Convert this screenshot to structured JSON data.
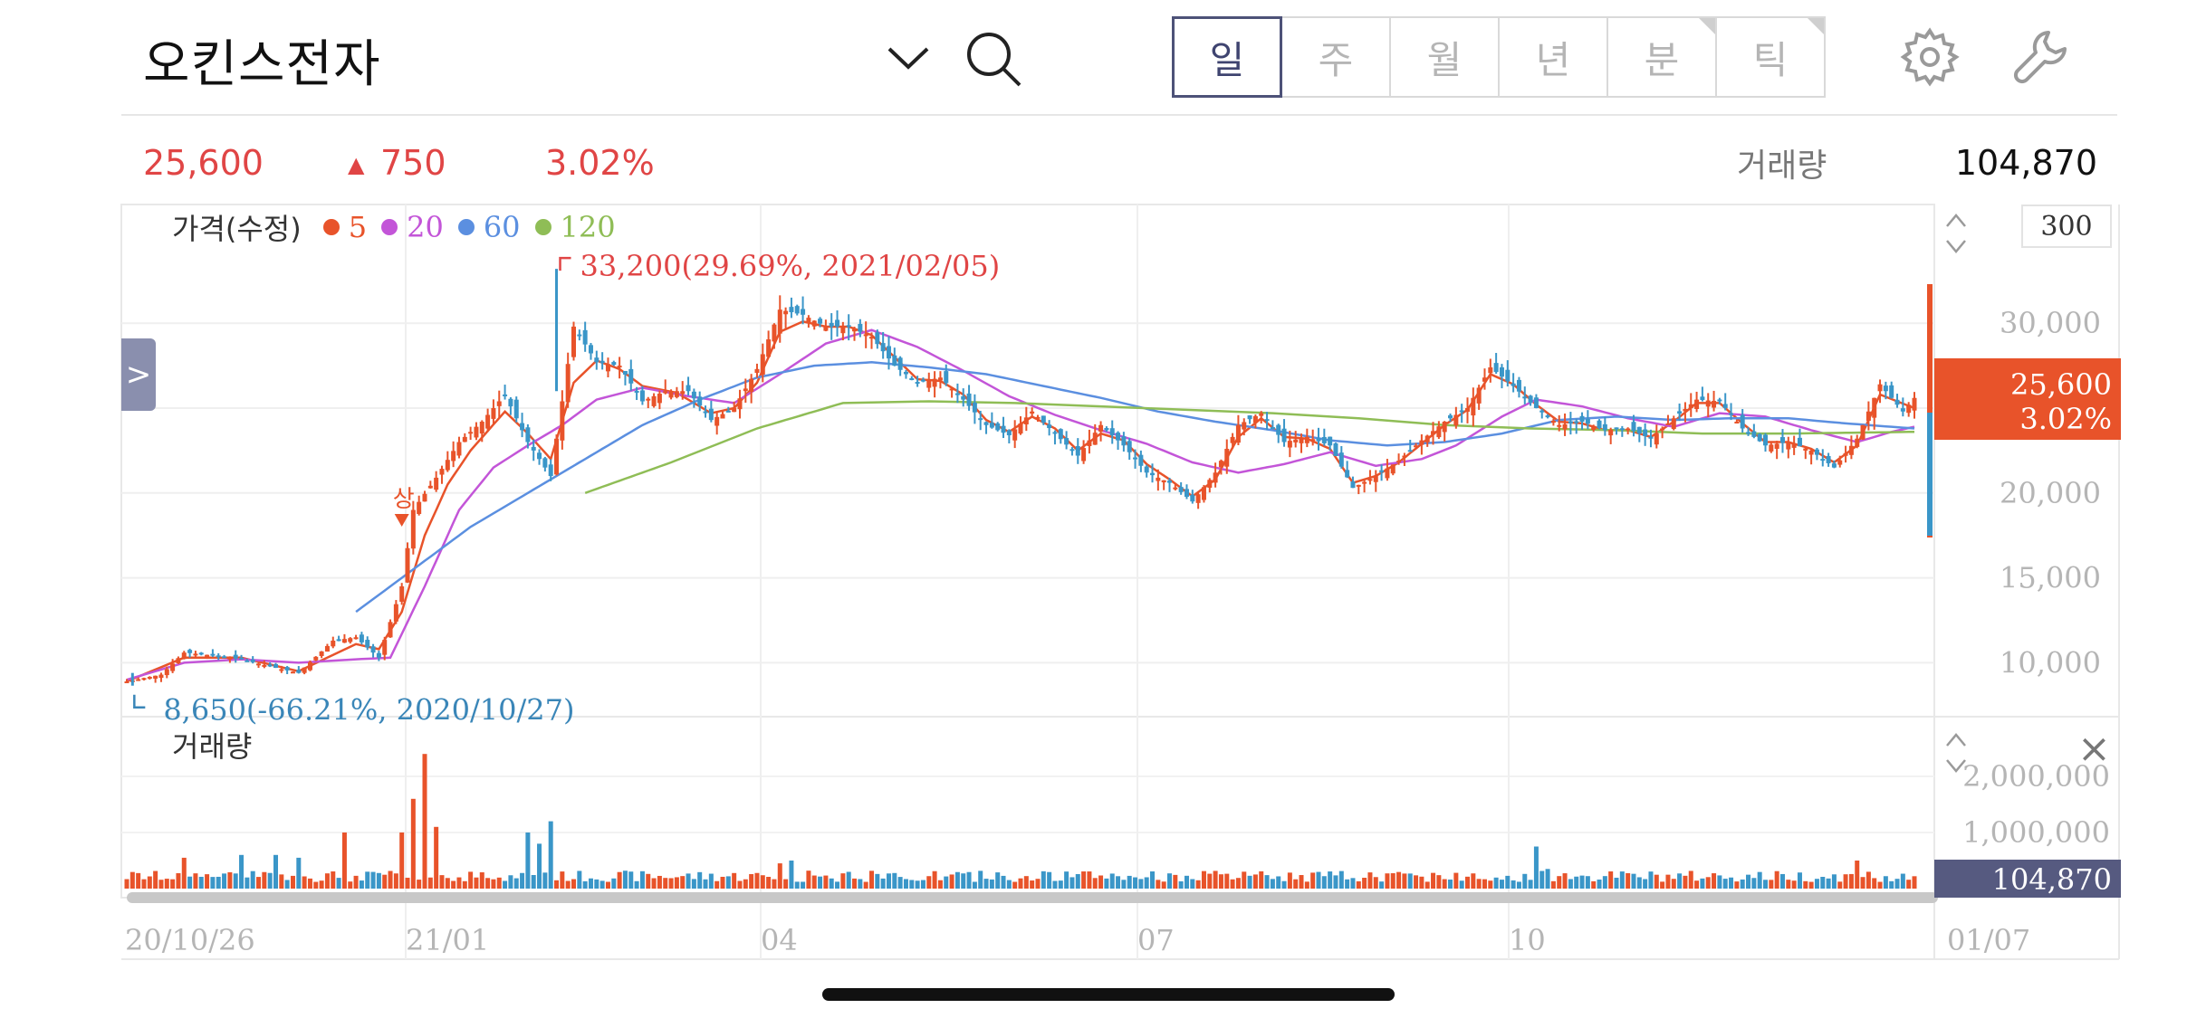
{
  "header": {
    "stock_name": "오킨스전자",
    "periods": [
      {
        "label": "일",
        "active": true
      },
      {
        "label": "주",
        "active": false
      },
      {
        "label": "월",
        "active": false
      },
      {
        "label": "년",
        "active": false
      },
      {
        "label": "분",
        "active": false
      },
      {
        "label": "틱",
        "active": false
      }
    ],
    "icons": [
      "chevron-down-icon",
      "search-icon",
      "gear-icon",
      "wrench-icon"
    ]
  },
  "quote": {
    "price": "25,600",
    "change_arrow": "▲",
    "change": "750",
    "change_pct": "3.02%",
    "volume_label": "거래량",
    "volume": "104,870"
  },
  "legend": {
    "title": "가격(수정)",
    "items": [
      {
        "label": "5",
        "color": "#e8532a"
      },
      {
        "label": "20",
        "color": "#c355d8"
      },
      {
        "label": "60",
        "color": "#5b8fe0"
      },
      {
        "label": "120",
        "color": "#8fbd56"
      }
    ]
  },
  "controls": {
    "side_tab": ">",
    "count": "300",
    "close": "×"
  },
  "badges": {
    "price": "25,600",
    "pct": "3.02%",
    "volume": "104,870"
  },
  "chart_data": {
    "type": "candlestick",
    "price_axis": {
      "ticks": [
        "30,000",
        "25,000",
        "20,000",
        "15,000",
        "10,000"
      ],
      "values": [
        30000,
        25000,
        20000,
        15000,
        10000
      ]
    },
    "volume_axis": {
      "ticks": [
        "2,000,000",
        "1,000,000"
      ],
      "values": [
        2000000,
        1000000
      ]
    },
    "x_ticks": [
      "20/10/26",
      "21/01",
      "04",
      "07",
      "10",
      "01/07"
    ],
    "annotations": {
      "high": {
        "text": "33,200(29.69%, 2021/02/05)",
        "value": 33200
      },
      "low": {
        "text": "8,650(-66.21%, 2020/10/27)",
        "value": 8650
      },
      "marker": "상"
    },
    "close_anchors": [
      [
        0,
        8900
      ],
      [
        6,
        9300
      ],
      [
        10,
        10600
      ],
      [
        16,
        10400
      ],
      [
        20,
        10200
      ],
      [
        26,
        9700
      ],
      [
        30,
        9400
      ],
      [
        36,
        11300
      ],
      [
        40,
        11500
      ],
      [
        44,
        10300
      ],
      [
        48,
        14500
      ],
      [
        50,
        19000
      ],
      [
        54,
        20900
      ],
      [
        58,
        23000
      ],
      [
        62,
        24200
      ],
      [
        66,
        25800
      ],
      [
        70,
        23000
      ],
      [
        74,
        21000
      ],
      [
        78,
        29800
      ],
      [
        82,
        27700
      ],
      [
        86,
        27500
      ],
      [
        90,
        25400
      ],
      [
        94,
        26000
      ],
      [
        98,
        26000
      ],
      [
        102,
        24300
      ],
      [
        106,
        25000
      ],
      [
        110,
        27300
      ],
      [
        114,
        30800
      ],
      [
        118,
        30500
      ],
      [
        122,
        29800
      ],
      [
        126,
        29800
      ],
      [
        130,
        29200
      ],
      [
        134,
        27500
      ],
      [
        138,
        26500
      ],
      [
        142,
        26800
      ],
      [
        146,
        25500
      ],
      [
        150,
        24000
      ],
      [
        154,
        23400
      ],
      [
        158,
        24800
      ],
      [
        162,
        23500
      ],
      [
        166,
        22200
      ],
      [
        170,
        24000
      ],
      [
        174,
        22800
      ],
      [
        178,
        21200
      ],
      [
        182,
        20600
      ],
      [
        186,
        19500
      ],
      [
        190,
        21200
      ],
      [
        194,
        24000
      ],
      [
        198,
        24700
      ],
      [
        202,
        23000
      ],
      [
        206,
        23300
      ],
      [
        210,
        22800
      ],
      [
        214,
        20300
      ],
      [
        218,
        21000
      ],
      [
        222,
        21900
      ],
      [
        226,
        23100
      ],
      [
        230,
        24200
      ],
      [
        234,
        25000
      ],
      [
        238,
        27400
      ],
      [
        242,
        26300
      ],
      [
        246,
        25000
      ],
      [
        250,
        24000
      ],
      [
        254,
        24200
      ],
      [
        258,
        23700
      ],
      [
        262,
        23800
      ],
      [
        266,
        23200
      ],
      [
        270,
        24400
      ],
      [
        274,
        25500
      ],
      [
        278,
        25400
      ],
      [
        282,
        23800
      ],
      [
        286,
        22800
      ],
      [
        290,
        23000
      ],
      [
        294,
        22500
      ],
      [
        298,
        21500
      ],
      [
        302,
        23200
      ],
      [
        306,
        26400
      ],
      [
        310,
        24800
      ],
      [
        312,
        25600
      ]
    ],
    "ma_anchors": {
      "5": [
        [
          0,
          8900
        ],
        [
          10,
          10300
        ],
        [
          20,
          10300
        ],
        [
          30,
          9500
        ],
        [
          40,
          11100
        ],
        [
          44,
          10800
        ],
        [
          48,
          13000
        ],
        [
          52,
          17500
        ],
        [
          56,
          20500
        ],
        [
          60,
          22500
        ],
        [
          66,
          24800
        ],
        [
          70,
          23500
        ],
        [
          74,
          22000
        ],
        [
          78,
          26500
        ],
        [
          82,
          27800
        ],
        [
          86,
          27300
        ],
        [
          90,
          26300
        ],
        [
          96,
          25900
        ],
        [
          102,
          24700
        ],
        [
          106,
          25000
        ],
        [
          110,
          26500
        ],
        [
          114,
          29500
        ],
        [
          118,
          30100
        ],
        [
          122,
          29800
        ],
        [
          126,
          29800
        ],
        [
          130,
          29300
        ],
        [
          134,
          28000
        ],
        [
          138,
          26700
        ],
        [
          142,
          26600
        ],
        [
          146,
          25800
        ],
        [
          150,
          24300
        ],
        [
          154,
          23600
        ],
        [
          158,
          24500
        ],
        [
          162,
          23800
        ],
        [
          166,
          22500
        ],
        [
          170,
          23500
        ],
        [
          174,
          23100
        ],
        [
          178,
          21700
        ],
        [
          182,
          20800
        ],
        [
          186,
          19800
        ],
        [
          190,
          20800
        ],
        [
          194,
          23300
        ],
        [
          198,
          24400
        ],
        [
          202,
          23300
        ],
        [
          206,
          23200
        ],
        [
          210,
          22600
        ],
        [
          214,
          20600
        ],
        [
          218,
          21000
        ],
        [
          222,
          21800
        ],
        [
          226,
          22900
        ],
        [
          230,
          24000
        ],
        [
          234,
          24900
        ],
        [
          238,
          27000
        ],
        [
          242,
          26400
        ],
        [
          246,
          25200
        ],
        [
          250,
          24200
        ],
        [
          254,
          24100
        ],
        [
          258,
          23700
        ],
        [
          262,
          23700
        ],
        [
          266,
          23300
        ],
        [
          270,
          24200
        ],
        [
          274,
          25300
        ],
        [
          278,
          25300
        ],
        [
          282,
          24100
        ],
        [
          286,
          23000
        ],
        [
          290,
          23000
        ],
        [
          294,
          22600
        ],
        [
          298,
          21800
        ],
        [
          302,
          22800
        ],
        [
          306,
          25800
        ],
        [
          312,
          25000
        ]
      ],
      "20": [
        [
          0,
          9000
        ],
        [
          10,
          10000
        ],
        [
          20,
          10200
        ],
        [
          30,
          10000
        ],
        [
          40,
          10200
        ],
        [
          46,
          10300
        ],
        [
          52,
          14500
        ],
        [
          58,
          19000
        ],
        [
          64,
          21500
        ],
        [
          70,
          22800
        ],
        [
          76,
          24000
        ],
        [
          82,
          25500
        ],
        [
          90,
          26200
        ],
        [
          98,
          25700
        ],
        [
          106,
          25300
        ],
        [
          114,
          27000
        ],
        [
          122,
          28800
        ],
        [
          130,
          29600
        ],
        [
          138,
          28600
        ],
        [
          146,
          27200
        ],
        [
          154,
          25700
        ],
        [
          162,
          24600
        ],
        [
          170,
          23700
        ],
        [
          178,
          22900
        ],
        [
          186,
          21800
        ],
        [
          194,
          21200
        ],
        [
          202,
          21700
        ],
        [
          210,
          22400
        ],
        [
          218,
          21600
        ],
        [
          226,
          22000
        ],
        [
          232,
          22800
        ],
        [
          240,
          24500
        ],
        [
          246,
          25500
        ],
        [
          254,
          25100
        ],
        [
          262,
          24400
        ],
        [
          270,
          23900
        ],
        [
          278,
          24700
        ],
        [
          286,
          24500
        ],
        [
          294,
          23700
        ],
        [
          302,
          23000
        ],
        [
          308,
          23600
        ],
        [
          312,
          23900
        ]
      ],
      "60": [
        [
          40,
          13000
        ],
        [
          50,
          15500
        ],
        [
          60,
          18000
        ],
        [
          70,
          20000
        ],
        [
          80,
          22000
        ],
        [
          90,
          24000
        ],
        [
          100,
          25500
        ],
        [
          110,
          26800
        ],
        [
          120,
          27500
        ],
        [
          130,
          27700
        ],
        [
          140,
          27400
        ],
        [
          150,
          27000
        ],
        [
          160,
          26300
        ],
        [
          170,
          25600
        ],
        [
          180,
          24800
        ],
        [
          190,
          24200
        ],
        [
          200,
          23700
        ],
        [
          210,
          23100
        ],
        [
          220,
          22800
        ],
        [
          230,
          23000
        ],
        [
          240,
          23500
        ],
        [
          250,
          24300
        ],
        [
          260,
          24500
        ],
        [
          270,
          24300
        ],
        [
          280,
          24400
        ],
        [
          290,
          24400
        ],
        [
          300,
          24100
        ],
        [
          312,
          23800
        ]
      ],
      "120": [
        [
          80,
          20000
        ],
        [
          95,
          21800
        ],
        [
          110,
          23800
        ],
        [
          125,
          25300
        ],
        [
          140,
          25400
        ],
        [
          155,
          25300
        ],
        [
          170,
          25100
        ],
        [
          185,
          24900
        ],
        [
          200,
          24700
        ],
        [
          215,
          24400
        ],
        [
          230,
          24000
        ],
        [
          245,
          23800
        ],
        [
          260,
          23700
        ],
        [
          275,
          23500
        ],
        [
          290,
          23500
        ],
        [
          312,
          23600
        ]
      ]
    },
    "volume_spikes": {
      "52": 2400000,
      "50": 1600000,
      "54": 1100000,
      "48": 1000000,
      "70": 1000000,
      "74": 1200000,
      "72": 800000,
      "26": 600000,
      "30": 550000,
      "38": 1000000,
      "20": 600000,
      "10": 550000,
      "246": 750000,
      "248": 350000,
      "302": 500000,
      "304": 300000,
      "114": 450000,
      "116": 500000
    }
  }
}
